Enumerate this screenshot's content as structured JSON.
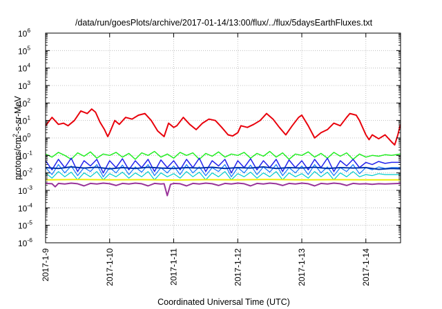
{
  "chart_data": {
    "type": "line",
    "title": "/data/run/goesPlots/archive/2017-01-14/13:00/flux/../flux/5daysEarthFluxes.txt",
    "xlabel": "Coordinated Universal Time (UTC)",
    "ylabel_parts": {
      "a": "protons/cm",
      "sup": "2",
      "b": "-s-sr-MeV"
    },
    "yscale": "log",
    "ylim": [
      1e-06,
      1000000.0
    ],
    "xlim": [
      "2017-01-09 00:00",
      "2017-01-14 13:00"
    ],
    "grid": true,
    "legend": "none",
    "y_ticks": [
      {
        "base": "10",
        "exp": "-6"
      },
      {
        "base": "10",
        "exp": "-5"
      },
      {
        "base": "10",
        "exp": "-4"
      },
      {
        "base": "10",
        "exp": "-3"
      },
      {
        "base": "10",
        "exp": "-2"
      },
      {
        "base": "10",
        "exp": "-1"
      },
      {
        "base": "10",
        "exp": "0"
      },
      {
        "base": "10",
        "exp": "1"
      },
      {
        "base": "10",
        "exp": "2"
      },
      {
        "base": "10",
        "exp": "3"
      },
      {
        "base": "10",
        "exp": "4"
      },
      {
        "base": "10",
        "exp": "5"
      },
      {
        "base": "10",
        "exp": "6"
      }
    ],
    "x_ticks": [
      "2017-1-9",
      "2017-1-10",
      "2017-1-11",
      "2017-1-12",
      "2017-1-13",
      "2017-1-14"
    ],
    "series": [
      {
        "color": "#e8000b",
        "width": 2,
        "x": [
          0,
          0.1,
          0.2,
          0.28,
          0.35,
          0.45,
          0.55,
          0.65,
          0.72,
          0.78,
          0.85,
          0.92,
          0.97,
          1.0,
          1.08,
          1.15,
          1.25,
          1.35,
          1.45,
          1.55,
          1.65,
          1.75,
          1.85,
          1.92,
          2.0,
          2.05,
          2.15,
          2.25,
          2.35,
          2.45,
          2.55,
          2.65,
          2.75,
          2.85,
          2.92,
          3.0,
          3.05,
          3.15,
          3.25,
          3.35,
          3.45,
          3.55,
          3.65,
          3.75,
          3.85,
          3.95,
          4.0,
          4.1,
          4.2,
          4.3,
          4.4,
          4.5,
          4.6,
          4.7,
          4.75,
          4.85,
          4.9,
          5.0,
          5.05,
          5.1,
          5.2,
          5.3,
          5.4,
          5.45,
          5.5,
          5.54
        ],
        "y": [
          5,
          15,
          6,
          7,
          5,
          10,
          35,
          25,
          45,
          30,
          8,
          3,
          1.2,
          2,
          10,
          6,
          15,
          12,
          20,
          25,
          10,
          2.5,
          1.2,
          7,
          4,
          5,
          15,
          6,
          3,
          7,
          12,
          10,
          4,
          1.5,
          1.3,
          2,
          5,
          4,
          6,
          10,
          25,
          12,
          4,
          1.5,
          5,
          15,
          20,
          5,
          1,
          2,
          3,
          7,
          5,
          15,
          25,
          20,
          10,
          1.5,
          0.8,
          1.5,
          0.9,
          1.5,
          0.6,
          0.4,
          1.5,
          6
        ]
      },
      {
        "color": "#22ee22",
        "width": 1.5,
        "x": [
          0,
          0.1,
          0.2,
          0.3,
          0.4,
          0.5,
          0.6,
          0.7,
          0.8,
          0.9,
          1.0,
          1.1,
          1.2,
          1.3,
          1.4,
          1.5,
          1.6,
          1.7,
          1.8,
          1.9,
          2.0,
          2.1,
          2.2,
          2.3,
          2.4,
          2.5,
          2.6,
          2.7,
          2.8,
          2.9,
          3.0,
          3.1,
          3.2,
          3.3,
          3.4,
          3.5,
          3.6,
          3.7,
          3.8,
          3.9,
          4.0,
          4.1,
          4.2,
          4.3,
          4.4,
          4.5,
          4.6,
          4.7,
          4.8,
          4.9,
          5.0,
          5.1,
          5.2,
          5.3,
          5.4,
          5.54
        ],
        "y": [
          0.12,
          0.08,
          0.15,
          0.1,
          0.06,
          0.14,
          0.09,
          0.16,
          0.07,
          0.12,
          0.1,
          0.15,
          0.08,
          0.13,
          0.06,
          0.14,
          0.1,
          0.17,
          0.08,
          0.12,
          0.07,
          0.15,
          0.1,
          0.14,
          0.06,
          0.13,
          0.09,
          0.16,
          0.08,
          0.12,
          0.1,
          0.15,
          0.07,
          0.13,
          0.09,
          0.17,
          0.08,
          0.14,
          0.06,
          0.12,
          0.1,
          0.16,
          0.08,
          0.13,
          0.07,
          0.15,
          0.09,
          0.14,
          0.06,
          0.12,
          0.08,
          0.1,
          0.09,
          0.11,
          0.1,
          0.12
        ]
      },
      {
        "color": "#2222ee",
        "width": 1.5,
        "x": [
          0,
          0.1,
          0.2,
          0.3,
          0.4,
          0.5,
          0.6,
          0.7,
          0.8,
          0.9,
          1.0,
          1.1,
          1.2,
          1.3,
          1.4,
          1.5,
          1.6,
          1.7,
          1.8,
          1.9,
          2.0,
          2.1,
          2.2,
          2.3,
          2.4,
          2.5,
          2.6,
          2.7,
          2.8,
          2.9,
          3.0,
          3.1,
          3.2,
          3.3,
          3.4,
          3.5,
          3.6,
          3.7,
          3.8,
          3.9,
          4.0,
          4.1,
          4.2,
          4.3,
          4.4,
          4.5,
          4.6,
          4.7,
          4.8,
          4.9,
          5.0,
          5.1,
          5.2,
          5.3,
          5.4,
          5.54
        ],
        "y": [
          0.05,
          0.015,
          0.06,
          0.02,
          0.07,
          0.012,
          0.05,
          0.025,
          0.06,
          0.01,
          0.05,
          0.02,
          0.065,
          0.015,
          0.05,
          0.02,
          0.06,
          0.012,
          0.055,
          0.02,
          0.05,
          0.015,
          0.06,
          0.02,
          0.07,
          0.012,
          0.05,
          0.025,
          0.06,
          0.01,
          0.05,
          0.02,
          0.065,
          0.015,
          0.05,
          0.02,
          0.06,
          0.012,
          0.055,
          0.02,
          0.05,
          0.015,
          0.06,
          0.02,
          0.07,
          0.012,
          0.05,
          0.025,
          0.06,
          0.02,
          0.04,
          0.03,
          0.045,
          0.035,
          0.04,
          0.04
        ]
      },
      {
        "color": "#1177ff",
        "width": 1.2,
        "x": [
          0,
          0.1,
          0.2,
          0.3,
          0.4,
          0.5,
          0.6,
          0.7,
          0.8,
          0.9,
          1.0,
          1.1,
          1.2,
          1.3,
          1.4,
          1.5,
          1.6,
          1.7,
          1.8,
          1.9,
          2.0,
          2.1,
          2.2,
          2.3,
          2.4,
          2.5,
          2.6,
          2.7,
          2.8,
          2.9,
          3.0,
          3.1,
          3.2,
          3.3,
          3.4,
          3.5,
          3.6,
          3.7,
          3.8,
          3.9,
          4.0,
          4.1,
          4.2,
          4.3,
          4.4,
          4.5,
          4.6,
          4.7,
          4.8,
          4.9,
          5.0,
          5.1,
          5.2,
          5.3,
          5.4,
          5.54
        ],
        "y": [
          0.02,
          0.008,
          0.03,
          0.01,
          0.025,
          0.007,
          0.02,
          0.012,
          0.03,
          0.006,
          0.02,
          0.01,
          0.028,
          0.008,
          0.022,
          0.011,
          0.03,
          0.007,
          0.02,
          0.01,
          0.025,
          0.008,
          0.03,
          0.01,
          0.022,
          0.007,
          0.02,
          0.012,
          0.03,
          0.006,
          0.02,
          0.01,
          0.028,
          0.008,
          0.022,
          0.011,
          0.03,
          0.007,
          0.02,
          0.01,
          0.025,
          0.008,
          0.03,
          0.01,
          0.022,
          0.007,
          0.02,
          0.012,
          0.03,
          0.009,
          0.02,
          0.015,
          0.022,
          0.018,
          0.02,
          0.02
        ]
      },
      {
        "color": "#0033aa",
        "width": 2,
        "x": [
          0,
          0.2,
          0.4,
          0.6,
          0.8,
          1.0,
          1.2,
          1.4,
          1.6,
          1.8,
          2.0,
          2.2,
          2.4,
          2.6,
          2.8,
          3.0,
          3.2,
          3.4,
          3.6,
          3.8,
          4.0,
          4.2,
          4.4,
          4.6,
          4.8,
          5.0,
          5.2,
          5.4,
          5.54
        ],
        "y": [
          0.02,
          0.018,
          0.022,
          0.019,
          0.021,
          0.017,
          0.02,
          0.018,
          0.021,
          0.019,
          0.018,
          0.02,
          0.019,
          0.021,
          0.018,
          0.02,
          0.019,
          0.022,
          0.018,
          0.02,
          0.019,
          0.021,
          0.018,
          0.02,
          0.019,
          0.02,
          0.016,
          0.018,
          0.017
        ]
      },
      {
        "color": "#00cccc",
        "width": 1.2,
        "x": [
          0,
          0.1,
          0.2,
          0.3,
          0.4,
          0.5,
          0.6,
          0.7,
          0.8,
          0.9,
          1.0,
          1.1,
          1.2,
          1.3,
          1.4,
          1.5,
          1.6,
          1.7,
          1.8,
          1.9,
          2.0,
          2.1,
          2.2,
          2.3,
          2.4,
          2.5,
          2.6,
          2.7,
          2.8,
          2.9,
          3.0,
          3.1,
          3.2,
          3.3,
          3.4,
          3.5,
          3.6,
          3.7,
          3.8,
          3.9,
          4.0,
          4.1,
          4.2,
          4.3,
          4.4,
          4.5,
          4.6,
          4.7,
          4.8,
          4.9,
          5.0,
          5.1,
          5.2,
          5.3,
          5.4,
          5.54
        ],
        "y": [
          0.01,
          0.005,
          0.012,
          0.006,
          0.011,
          0.004,
          0.01,
          0.006,
          0.012,
          0.004,
          0.009,
          0.006,
          0.011,
          0.005,
          0.01,
          0.006,
          0.012,
          0.004,
          0.01,
          0.006,
          0.009,
          0.005,
          0.012,
          0.006,
          0.011,
          0.004,
          0.01,
          0.006,
          0.012,
          0.004,
          0.009,
          0.006,
          0.011,
          0.005,
          0.01,
          0.006,
          0.012,
          0.004,
          0.01,
          0.006,
          0.009,
          0.005,
          0.012,
          0.006,
          0.011,
          0.004,
          0.01,
          0.006,
          0.012,
          0.006,
          0.008,
          0.007,
          0.009,
          0.008,
          0.008,
          0.008
        ]
      },
      {
        "color": "#eeee00",
        "width": 2,
        "x": [
          0,
          0.5,
          1.0,
          1.5,
          2.0,
          2.5,
          3.0,
          3.5,
          4.0,
          4.5,
          5.0,
          5.54
        ],
        "y": [
          0.004,
          0.0042,
          0.004,
          0.0041,
          0.0039,
          0.0041,
          0.004,
          0.0042,
          0.004,
          0.0041,
          0.004,
          0.004
        ]
      },
      {
        "color": "#993399",
        "width": 2,
        "x": [
          0,
          0.1,
          0.15,
          0.2,
          0.3,
          0.4,
          0.5,
          0.6,
          0.7,
          0.8,
          0.9,
          1.0,
          1.1,
          1.2,
          1.3,
          1.4,
          1.5,
          1.6,
          1.7,
          1.8,
          1.85,
          1.9,
          1.95,
          2.0,
          2.1,
          2.2,
          2.3,
          2.4,
          2.5,
          2.6,
          2.7,
          2.8,
          2.9,
          3.0,
          3.1,
          3.2,
          3.3,
          3.4,
          3.5,
          3.6,
          3.7,
          3.8,
          3.9,
          4.0,
          4.1,
          4.2,
          4.3,
          4.4,
          4.5,
          4.6,
          4.7,
          4.8,
          4.9,
          5.0,
          5.1,
          5.2,
          5.3,
          5.4,
          5.54
        ],
        "y": [
          0.0025,
          0.0024,
          0.0016,
          0.0025,
          0.0023,
          0.0026,
          0.0024,
          0.0018,
          0.0025,
          0.0023,
          0.0026,
          0.0024,
          0.0019,
          0.0025,
          0.0023,
          0.0026,
          0.0024,
          0.0018,
          0.0025,
          0.0023,
          0.0024,
          0.0005,
          0.0022,
          0.0025,
          0.0024,
          0.0018,
          0.0025,
          0.0023,
          0.0026,
          0.0024,
          0.0019,
          0.0025,
          0.0023,
          0.0026,
          0.0024,
          0.0018,
          0.0025,
          0.0023,
          0.0026,
          0.0024,
          0.0019,
          0.0025,
          0.0023,
          0.0026,
          0.0024,
          0.0018,
          0.0025,
          0.0023,
          0.0026,
          0.0024,
          0.0019,
          0.0025,
          0.0023,
          0.0024,
          0.0022,
          0.0024,
          0.0023,
          0.0024,
          0.0025
        ]
      }
    ]
  }
}
